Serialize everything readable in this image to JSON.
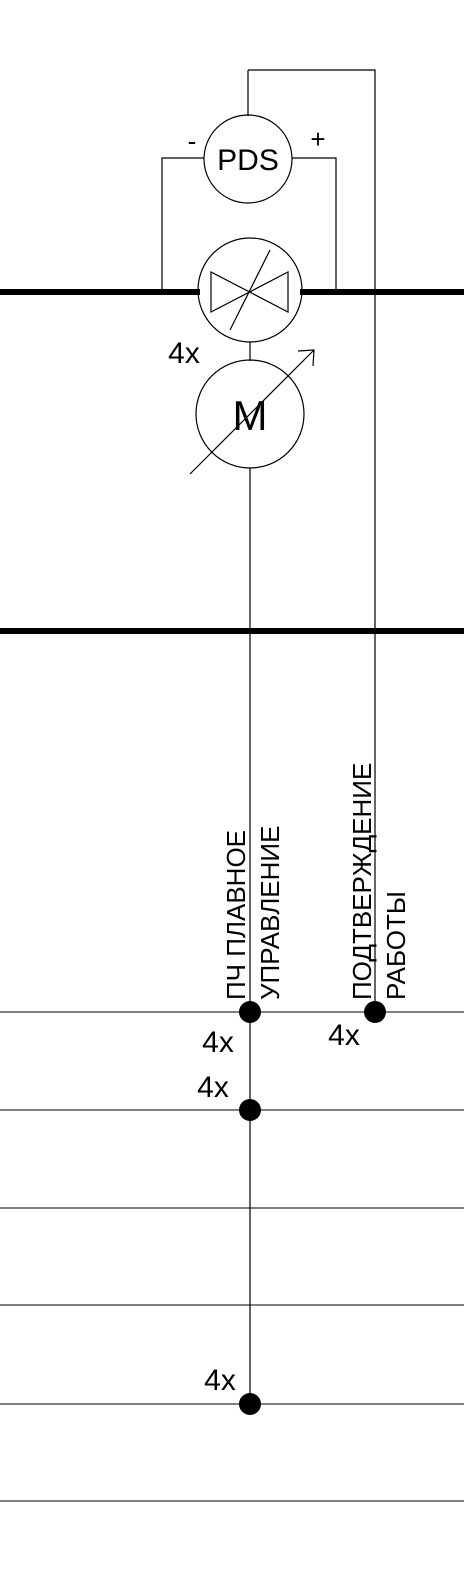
{
  "colors": {
    "line": "#000000",
    "background": "#ffffff"
  },
  "symbols": {
    "pds": {
      "label": "PDS",
      "minus": "-",
      "plus": "+"
    },
    "damper": {
      "icon": "damper-actuator-icon"
    },
    "motor": {
      "label": "M",
      "quantity": "4x"
    }
  },
  "signals": {
    "soft_control": {
      "line1": "ПЧ ПЛАВНОЕ",
      "line2": "УПРАВЛЕНИЕ"
    },
    "confirmation": {
      "line1": "ПОДТВЕРЖДЕНИЕ",
      "line2": "РАБОТЫ"
    }
  },
  "multipliers": {
    "bus1_soft": "4x",
    "bus1_confirm": "4x",
    "bus2": "4x",
    "bus5": "4x"
  }
}
